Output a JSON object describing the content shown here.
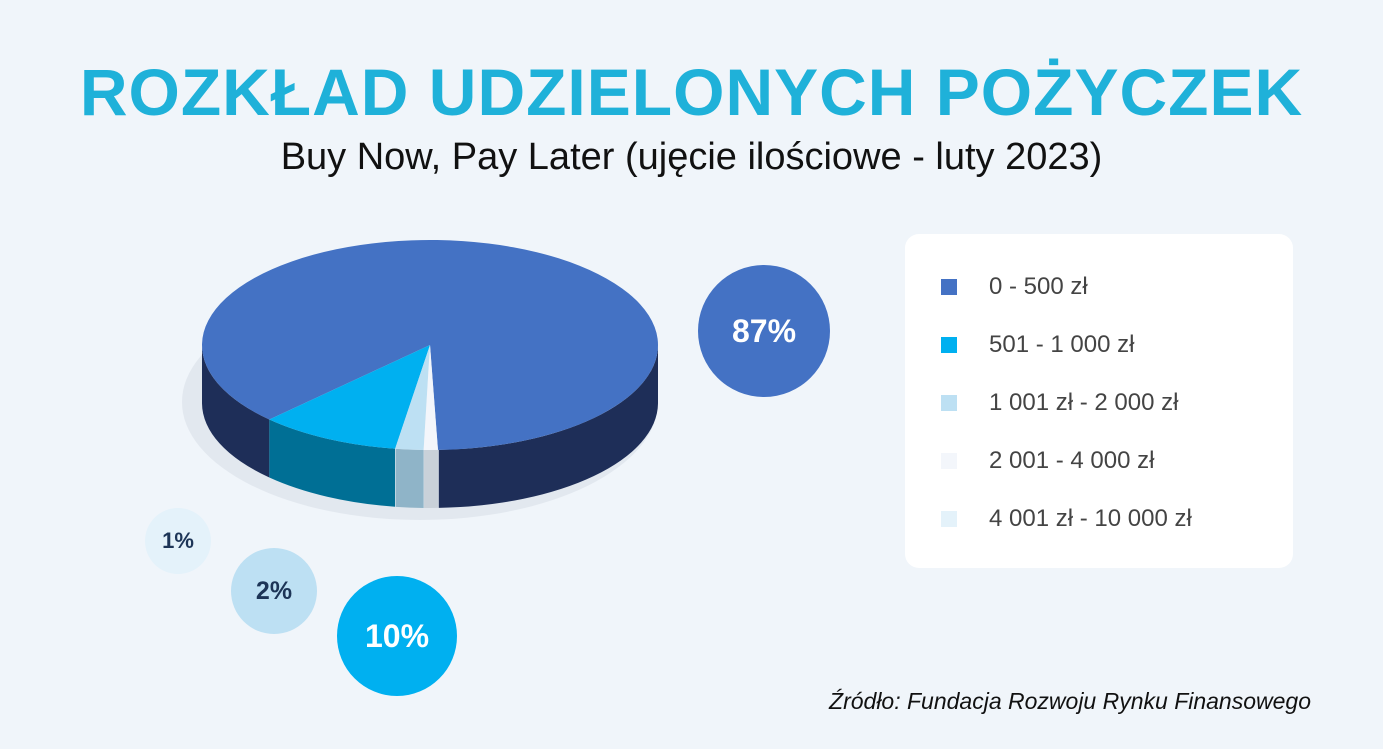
{
  "header": {
    "title": "ROZKŁAD UDZIELONYCH POŻYCZEK",
    "subtitle": "Buy Now, Pay Later (ujęcie ilościowe - luty 2023)"
  },
  "chart_data": {
    "type": "pie",
    "title": "ROZKŁAD UDZIELONYCH POŻYCZEK",
    "subtitle": "Buy Now, Pay Later (ujęcie ilościowe - luty 2023)",
    "categories": [
      "0 - 500 zł",
      "501 - 1 000 zł",
      "1 001 zł - 2 000 zł",
      "2 001 - 4 000 zł",
      "4 001 zł - 10 000 zł"
    ],
    "values": [
      87,
      10,
      2,
      1,
      0
    ],
    "colors": [
      "#4472c4",
      "#00b0f0",
      "#bde0f3",
      "#f3f6fb",
      "#e4f2fa"
    ],
    "data_labels": [
      {
        "category": "0 - 500 zł",
        "text": "87%"
      },
      {
        "category": "501 - 1 000 zł",
        "text": "10%"
      },
      {
        "category": "1 001 zł - 2 000 zł",
        "text": "2%"
      },
      {
        "category": "2 001 - 4 000 zł",
        "text": "1%"
      }
    ],
    "legend_position": "right",
    "style": "3d"
  },
  "source": "Źródło: Fundacja Rozwoju Rynku Finansowego"
}
